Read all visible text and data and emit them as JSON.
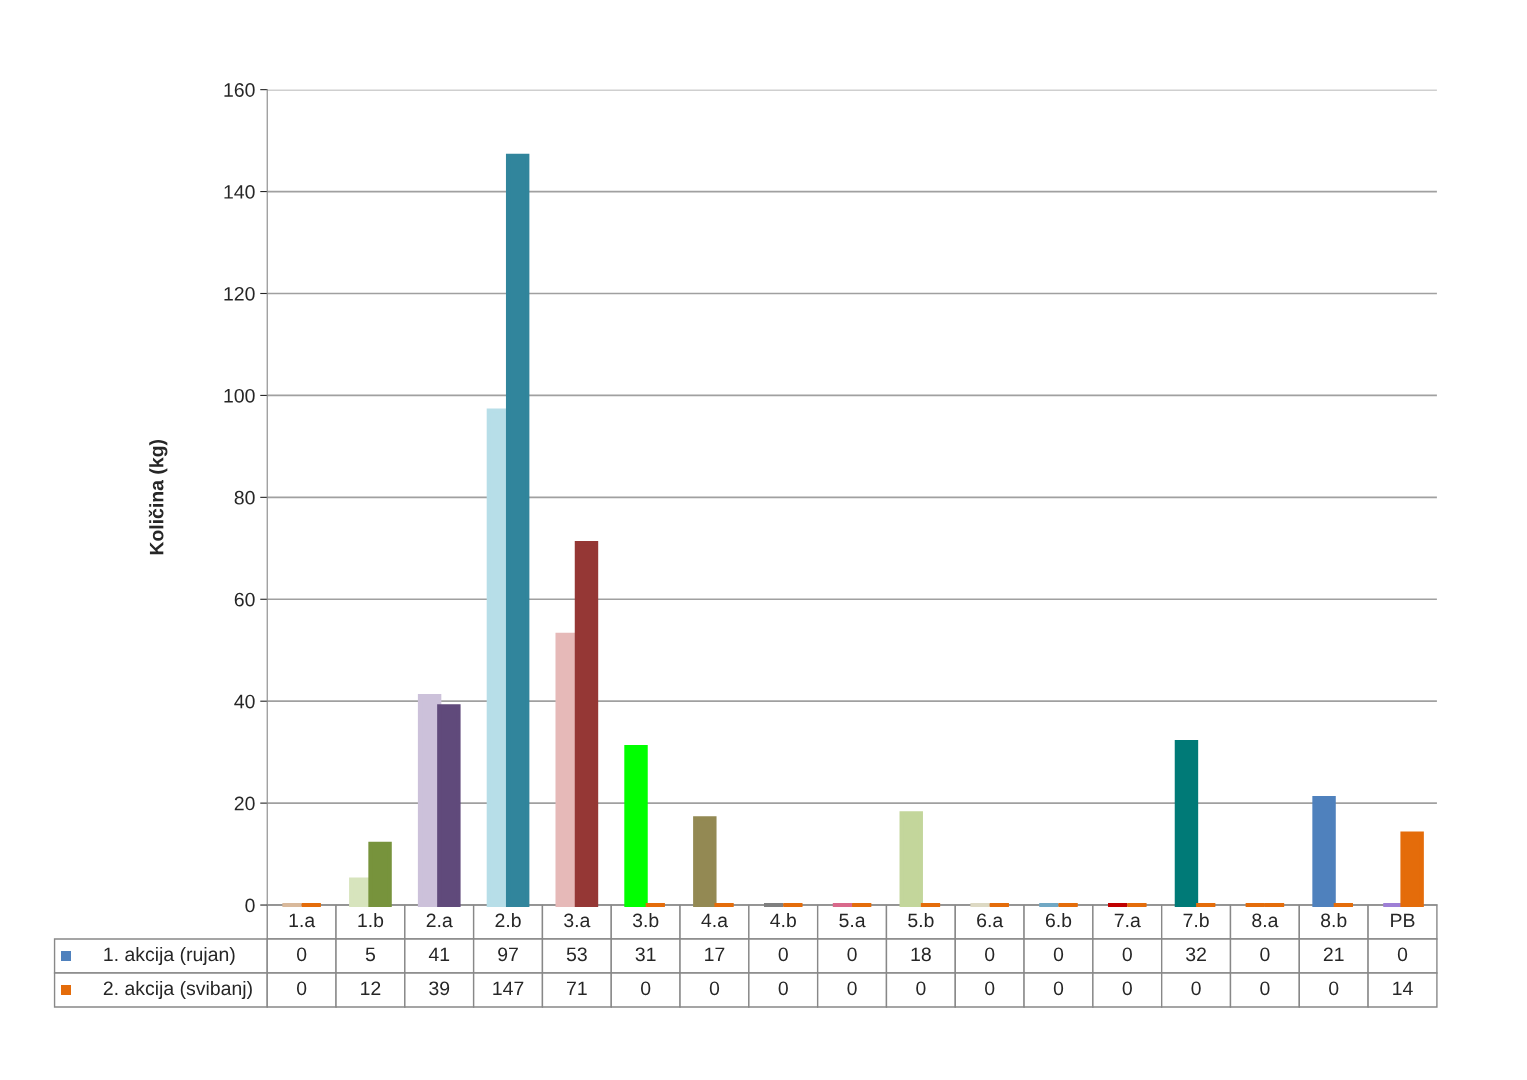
{
  "chart_data": {
    "type": "bar",
    "ylabel": "Količina (kg)",
    "categories": [
      "1.a",
      "1.b",
      "2.a",
      "2.b",
      "3.a",
      "3.b",
      "4.a",
      "4.b",
      "5.a",
      "5.b",
      "6.a",
      "6.b",
      "7.a",
      "7.b",
      "8.a",
      "8.b",
      "PB"
    ],
    "series": [
      {
        "name": "1. akcija (rujan)",
        "color": "#4f81bd",
        "values": [
          0,
          5,
          41,
          97,
          53,
          31,
          17,
          0,
          0,
          18,
          0,
          0,
          0,
          32,
          0,
          21,
          0
        ],
        "colors": [
          "#d9b99b",
          "#d7e4bd",
          "#ccc1da",
          "#b7dee8",
          "#e6b9b8",
          "#00ff00",
          "#938953",
          "#7f7f7f",
          "#d9698b",
          "#c3d69b",
          "#ddd9c3",
          "#71a8c4",
          "#c00000",
          "#007a77",
          "#e46c0a",
          "#4f81bd",
          "#9e7fd6"
        ]
      },
      {
        "name": "2. akcija (svibanj)",
        "color": "#e46c0a",
        "values": [
          0,
          12,
          39,
          147,
          71,
          0,
          0,
          0,
          0,
          0,
          0,
          0,
          0,
          0,
          0,
          0,
          14
        ],
        "colors": [
          "#e46c0a",
          "#77933c",
          "#604a7b",
          "#31859c",
          "#953735",
          "#e46c0a",
          "#e46c0a",
          "#e46c0a",
          "#e46c0a",
          "#e46c0a",
          "#e46c0a",
          "#e46c0a",
          "#e46c0a",
          "#e46c0a",
          "#e46c0a",
          "#e46c0a",
          "#e46c0a"
        ]
      }
    ],
    "ylim": [
      0,
      160
    ],
    "yticks": [
      0,
      20,
      40,
      60,
      80,
      100,
      120,
      140,
      160
    ],
    "grid": "y",
    "data_labels": true,
    "legend": "bottom"
  }
}
